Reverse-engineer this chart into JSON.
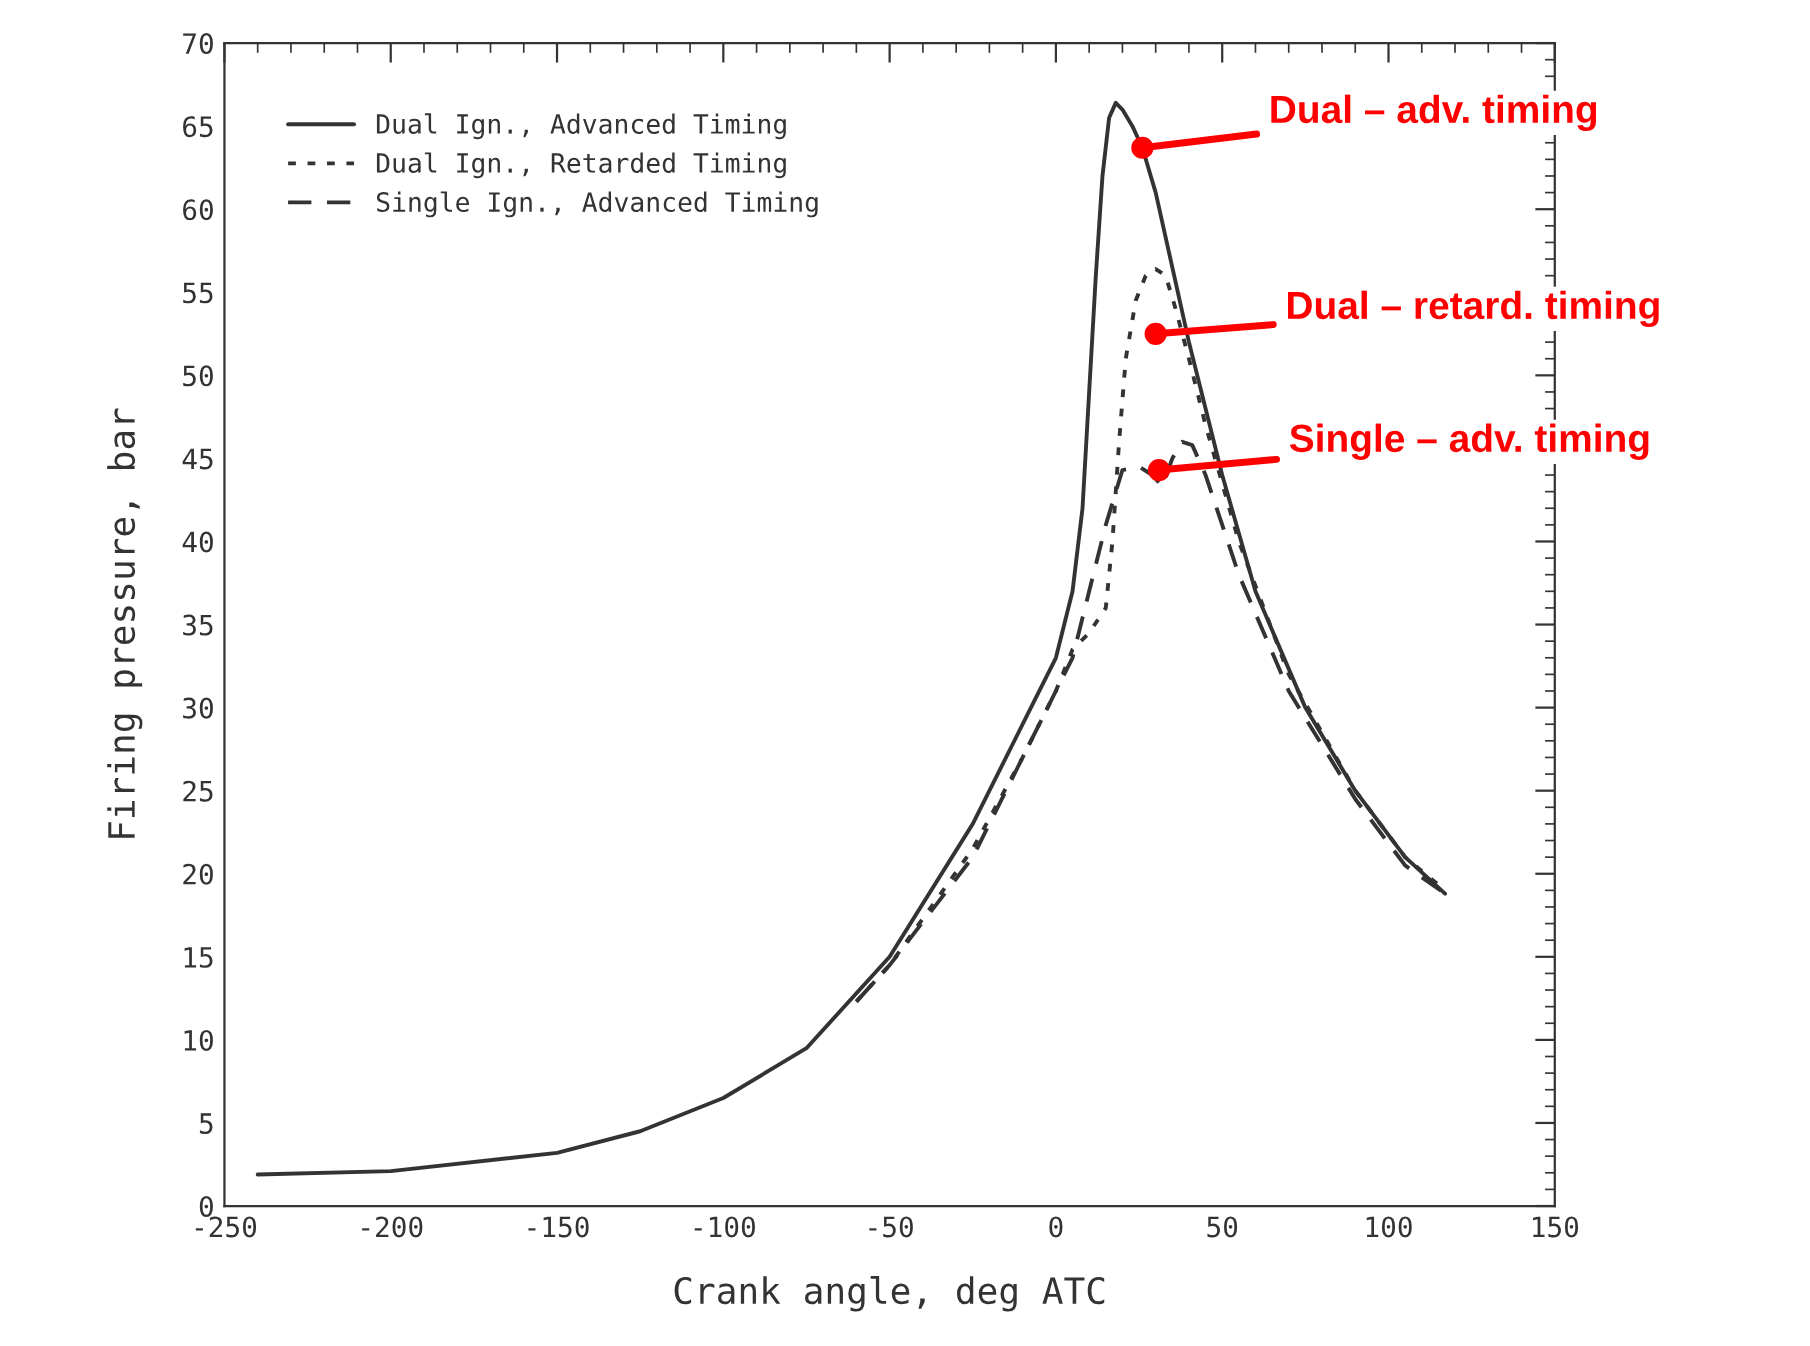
{
  "chart_data": {
    "type": "line",
    "xlabel": "Crank angle, deg ATC",
    "ylabel": "Firing pressure, bar",
    "xlim": [
      -250,
      150
    ],
    "xticks": [
      -250,
      -200,
      -150,
      -100,
      -50,
      0,
      50,
      100,
      150
    ],
    "ylim": [
      0,
      70
    ],
    "yticks": [
      0,
      5,
      10,
      15,
      20,
      25,
      30,
      35,
      40,
      45,
      50,
      55,
      60,
      65,
      70
    ],
    "grid": false,
    "legend": "top left",
    "marker": "none",
    "series": [
      {
        "name": "Dual Ign., Advanced Timing",
        "color": "#333333",
        "line_style": "solid",
        "x": [
          -240,
          -200,
          -150,
          -125,
          -100,
          -75,
          -50,
          -25,
          -10,
          0,
          5,
          8,
          10,
          12,
          14,
          16,
          18,
          20,
          23,
          26,
          30,
          40,
          50,
          60,
          75,
          90,
          105,
          117
        ],
        "values": [
          1.9,
          2.1,
          3.2,
          4.5,
          6.5,
          9.5,
          15,
          23,
          29,
          33,
          37,
          42,
          49,
          56,
          62,
          65.5,
          66.4,
          66,
          65,
          63.7,
          61,
          52,
          44,
          37,
          30,
          25,
          21,
          18.8
        ]
      },
      {
        "name": "Dual Ign., Retarded Timing",
        "color": "#333333",
        "line_style": "dotted",
        "x": [
          -60,
          -50,
          -25,
          -10,
          0,
          5,
          10,
          15,
          17,
          19,
          21,
          24,
          27,
          30,
          33,
          36,
          40,
          45,
          55,
          70,
          90,
          105,
          117
        ],
        "values": [
          12.3,
          14.5,
          21.5,
          27,
          31,
          33.5,
          34.5,
          36,
          40,
          46,
          51,
          54.5,
          56,
          56.4,
          56,
          54,
          51,
          47,
          40,
          32,
          25,
          21,
          19
        ]
      },
      {
        "name": "Single Ign., Advanced Timing",
        "color": "#333333",
        "line_style": "dashed",
        "x": [
          -60,
          -50,
          -25,
          -10,
          0,
          5,
          10,
          15,
          20,
          25,
          29,
          32,
          35,
          38,
          41,
          45,
          55,
          70,
          90,
          105,
          117
        ],
        "values": [
          12.3,
          14.5,
          21,
          27,
          31,
          33,
          37,
          41,
          44.3,
          44.5,
          44,
          43.3,
          45,
          46,
          45.8,
          44,
          38,
          31,
          24.5,
          20.5,
          18.8
        ]
      }
    ],
    "annotations": [
      {
        "text": "Dual – adv. timing",
        "x": 26,
        "y": 63.7
      },
      {
        "text": "Dual – retard. timing",
        "x": 30,
        "y": 52.5
      },
      {
        "text": "Single – adv. timing",
        "x": 31,
        "y": 44.3
      }
    ]
  }
}
